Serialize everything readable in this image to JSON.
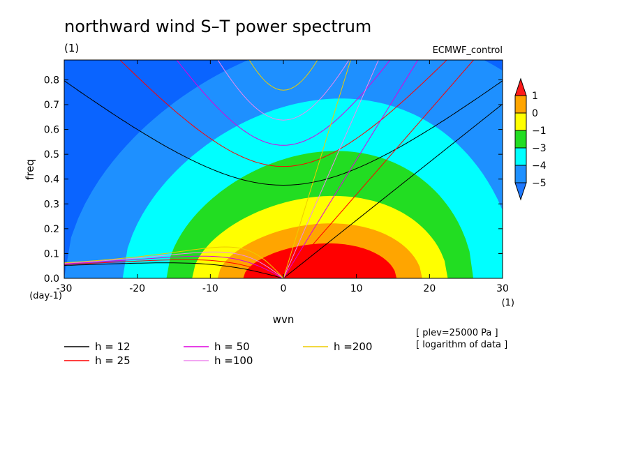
{
  "chart_data": {
    "type": "heatmap",
    "title": "northward wind S–T power spectrum",
    "subtitle_left": "(1)",
    "subtitle_right": "ECMWF_control",
    "xlabel": "wvn",
    "ylabel": "freq",
    "x_units": "(1)",
    "y_units": "(day-1)",
    "xlim": [
      -30,
      30
    ],
    "ylim": [
      0,
      0.88
    ],
    "x_ticks": [
      "-30",
      "-20",
      "-10",
      "0",
      "10",
      "20",
      "30"
    ],
    "x_tick_values": [
      -30,
      -20,
      -10,
      0,
      10,
      20,
      30
    ],
    "y_ticks": [
      "0.0",
      "0.1",
      "0.2",
      "0.3",
      "0.4",
      "0.5",
      "0.6",
      "0.7",
      "0.8"
    ],
    "y_tick_values": [
      0,
      0.1,
      0.2,
      0.3,
      0.4,
      0.5,
      0.6,
      0.7,
      0.8
    ],
    "colorbar": {
      "labels": [
        "1",
        "0",
        "−1",
        "−3",
        "−4",
        "−5"
      ],
      "colors": [
        "#ff1a1a",
        "#ffa500",
        "#ffff00",
        "#22dd22",
        "#00ffff",
        "#1e90ff",
        "#0a64ff"
      ],
      "band_colors": [
        "#ffa500",
        "#ffff00",
        "#22dd22",
        "#00ffff",
        "#1e90ff"
      ],
      "top_color": "#ff1a1a",
      "bottom_color": "#1e78ff"
    },
    "contour_levels": [
      {
        "level": 1,
        "color": "#ff0000",
        "half_width": 10.5,
        "peak_freq": 0.14,
        "peak_wvn": 5
      },
      {
        "level": 0,
        "color": "#ffa500",
        "half_width": 14,
        "peak_freq": 0.22,
        "peak_wvn": 5
      },
      {
        "level": -1,
        "color": "#ffff00",
        "half_width": 17.5,
        "peak_freq": 0.33,
        "peak_wvn": 5
      },
      {
        "level": -3,
        "color": "#22dd22",
        "half_width": 21,
        "peak_freq": 0.51,
        "peak_wvn": 5
      },
      {
        "level": -4,
        "color": "#00ffff",
        "half_width": 27,
        "peak_freq": 0.72,
        "peak_wvn": 5
      },
      {
        "level": -5,
        "color": "#1e90ff",
        "half_width": 38,
        "peak_freq": 0.98,
        "peak_wvn": 8
      },
      {
        "level": -6,
        "color": "#0a64ff"
      }
    ],
    "dispersion_curves": [
      {
        "name": "h = 12",
        "color": "#000000",
        "h": 12
      },
      {
        "name": "h = 25",
        "color": "#ff0000",
        "h": 25
      },
      {
        "name": "h = 50",
        "color": "#dd00dd",
        "h": 50
      },
      {
        "name": "h =100",
        "color": "#ee88ee",
        "h": 100
      },
      {
        "name": "h =200",
        "color": "#eecc00",
        "h": 200
      }
    ],
    "annotations": [
      "[ plev=25000 Pa ]",
      "[ logarithm of data ]"
    ],
    "grid": false,
    "legend_placement": "bottom-left"
  }
}
